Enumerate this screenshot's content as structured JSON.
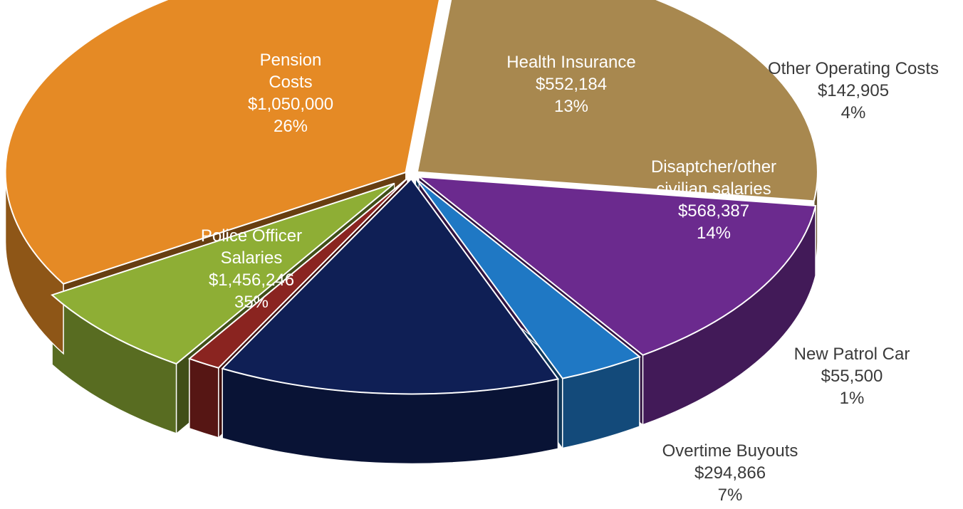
{
  "chart_data": {
    "type": "pie",
    "title": "",
    "slices": [
      {
        "label_lines": [
          "Pension",
          "Costs"
        ],
        "value": 1050000,
        "value_text": "$1,050,000",
        "percent_text": "26%",
        "color": "#A8884F"
      },
      {
        "label_lines": [
          "Health Insurance"
        ],
        "value": 552184,
        "value_text": "$552,184",
        "percent_text": "13%",
        "color": "#6B2A8E"
      },
      {
        "label_lines": [
          "Other Operating Costs"
        ],
        "value": 142905,
        "value_text": "$142,905",
        "percent_text": "4%",
        "color": "#1F78C4"
      },
      {
        "label_lines": [
          "Disaptcher/other",
          "civilian salaries"
        ],
        "value": 568387,
        "value_text": "$568,387",
        "percent_text": "14%",
        "color": "#0F1F55"
      },
      {
        "label_lines": [
          "New Patrol Car"
        ],
        "value": 55500,
        "value_text": "$55,500",
        "percent_text": "1%",
        "color": "#8A2420"
      },
      {
        "label_lines": [
          "Overtime Buyouts"
        ],
        "value": 294866,
        "value_text": "$294,866",
        "percent_text": "7%",
        "color": "#8EAE35"
      },
      {
        "label_lines": [
          "Police Officer",
          "Salaries"
        ],
        "value": 1456246,
        "value_text": "$1,456,246",
        "percent_text": "35%",
        "color": "#E58A25"
      }
    ]
  }
}
